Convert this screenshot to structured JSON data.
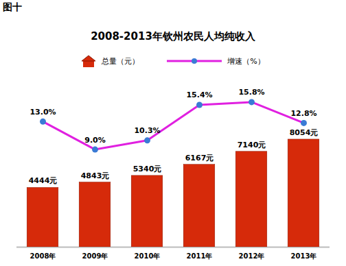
{
  "chart_data": {
    "type": "bar",
    "annotations": [
      "图十"
    ],
    "title": "2008-2013年钦州农民人均纯收入",
    "categories": [
      "2008年",
      "2009年",
      "2010年",
      "2011年",
      "2012年",
      "2013年"
    ],
    "series": [
      {
        "name": "总量（元）",
        "type": "bar",
        "color": "#d62a0a",
        "values": [
          4444,
          4843,
          5340,
          6167,
          7140,
          8054
        ],
        "value_labels": [
          "4444元",
          "4843元",
          "5340元",
          "6167元",
          "7140元",
          "8054元"
        ]
      },
      {
        "name": "增速（%）",
        "type": "line",
        "axis": "y2",
        "color": "#e020e0",
        "marker": "circle",
        "values": [
          13.0,
          9.0,
          10.3,
          15.4,
          15.8,
          12.8
        ],
        "value_labels": [
          "13.0%",
          "9.0%",
          "10.3%",
          "15.4%",
          "15.8%",
          "12.8%"
        ]
      }
    ],
    "ylim": [
      0,
      12000
    ],
    "y2lim": [
      -5,
      18
    ],
    "data_labels": true,
    "tick_labels": "x",
    "grid": false,
    "legend": "top"
  }
}
